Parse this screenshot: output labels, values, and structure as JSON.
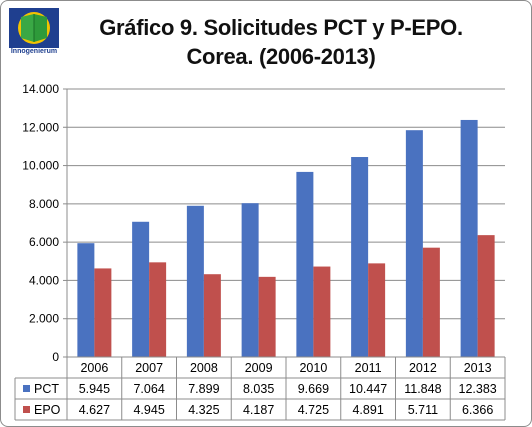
{
  "logo": {
    "text": "Innogenierum"
  },
  "chart_data": {
    "type": "bar",
    "title": "Gráfico 9. Solicitudes PCT y P-EPO.",
    "subtitle": "Corea. (2006-2013)",
    "categories": [
      "2006",
      "2007",
      "2008",
      "2009",
      "2010",
      "2011",
      "2012",
      "2013"
    ],
    "series": [
      {
        "name": "PCT",
        "color": "#4a72c0",
        "values": [
          5945,
          7064,
          7899,
          8035,
          9669,
          10447,
          11848,
          12383
        ],
        "labels": [
          "5.945",
          "7.064",
          "7.899",
          "8.035",
          "9.669",
          "10.447",
          "11.848",
          "12.383"
        ]
      },
      {
        "name": "EPO",
        "color": "#c0504d",
        "values": [
          4627,
          4945,
          4325,
          4187,
          4725,
          4891,
          5711,
          6366
        ],
        "labels": [
          "4.627",
          "4.945",
          "4.325",
          "4.187",
          "4.725",
          "4.891",
          "5.711",
          "6.366"
        ]
      }
    ],
    "ylim": [
      0,
      14000
    ],
    "yticks": [
      0,
      2000,
      4000,
      6000,
      8000,
      10000,
      12000,
      14000
    ],
    "ytick_labels": [
      "0",
      "2.000",
      "4.000",
      "6.000",
      "8.000",
      "10.000",
      "12.000",
      "14.000"
    ],
    "grid": true,
    "legend": "data-table"
  }
}
